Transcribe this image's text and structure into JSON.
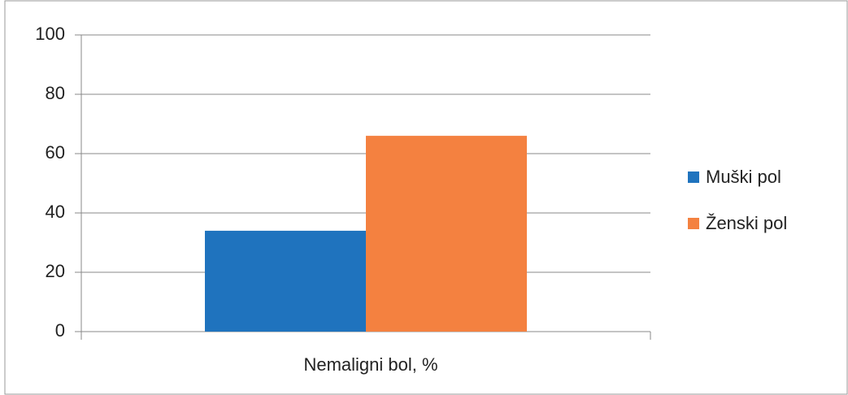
{
  "chart_data": {
    "type": "bar",
    "categories": [
      "Nemaligni bol, %"
    ],
    "series": [
      {
        "name": "Muški pol",
        "color": "#1f73be",
        "values": [
          34
        ]
      },
      {
        "name": "Ženski pol",
        "color": "#f48140",
        "values": [
          66
        ]
      }
    ],
    "ylim": [
      0,
      100
    ],
    "yticks": [
      0,
      20,
      40,
      60,
      80,
      100
    ],
    "grid": true,
    "legend": "right"
  }
}
